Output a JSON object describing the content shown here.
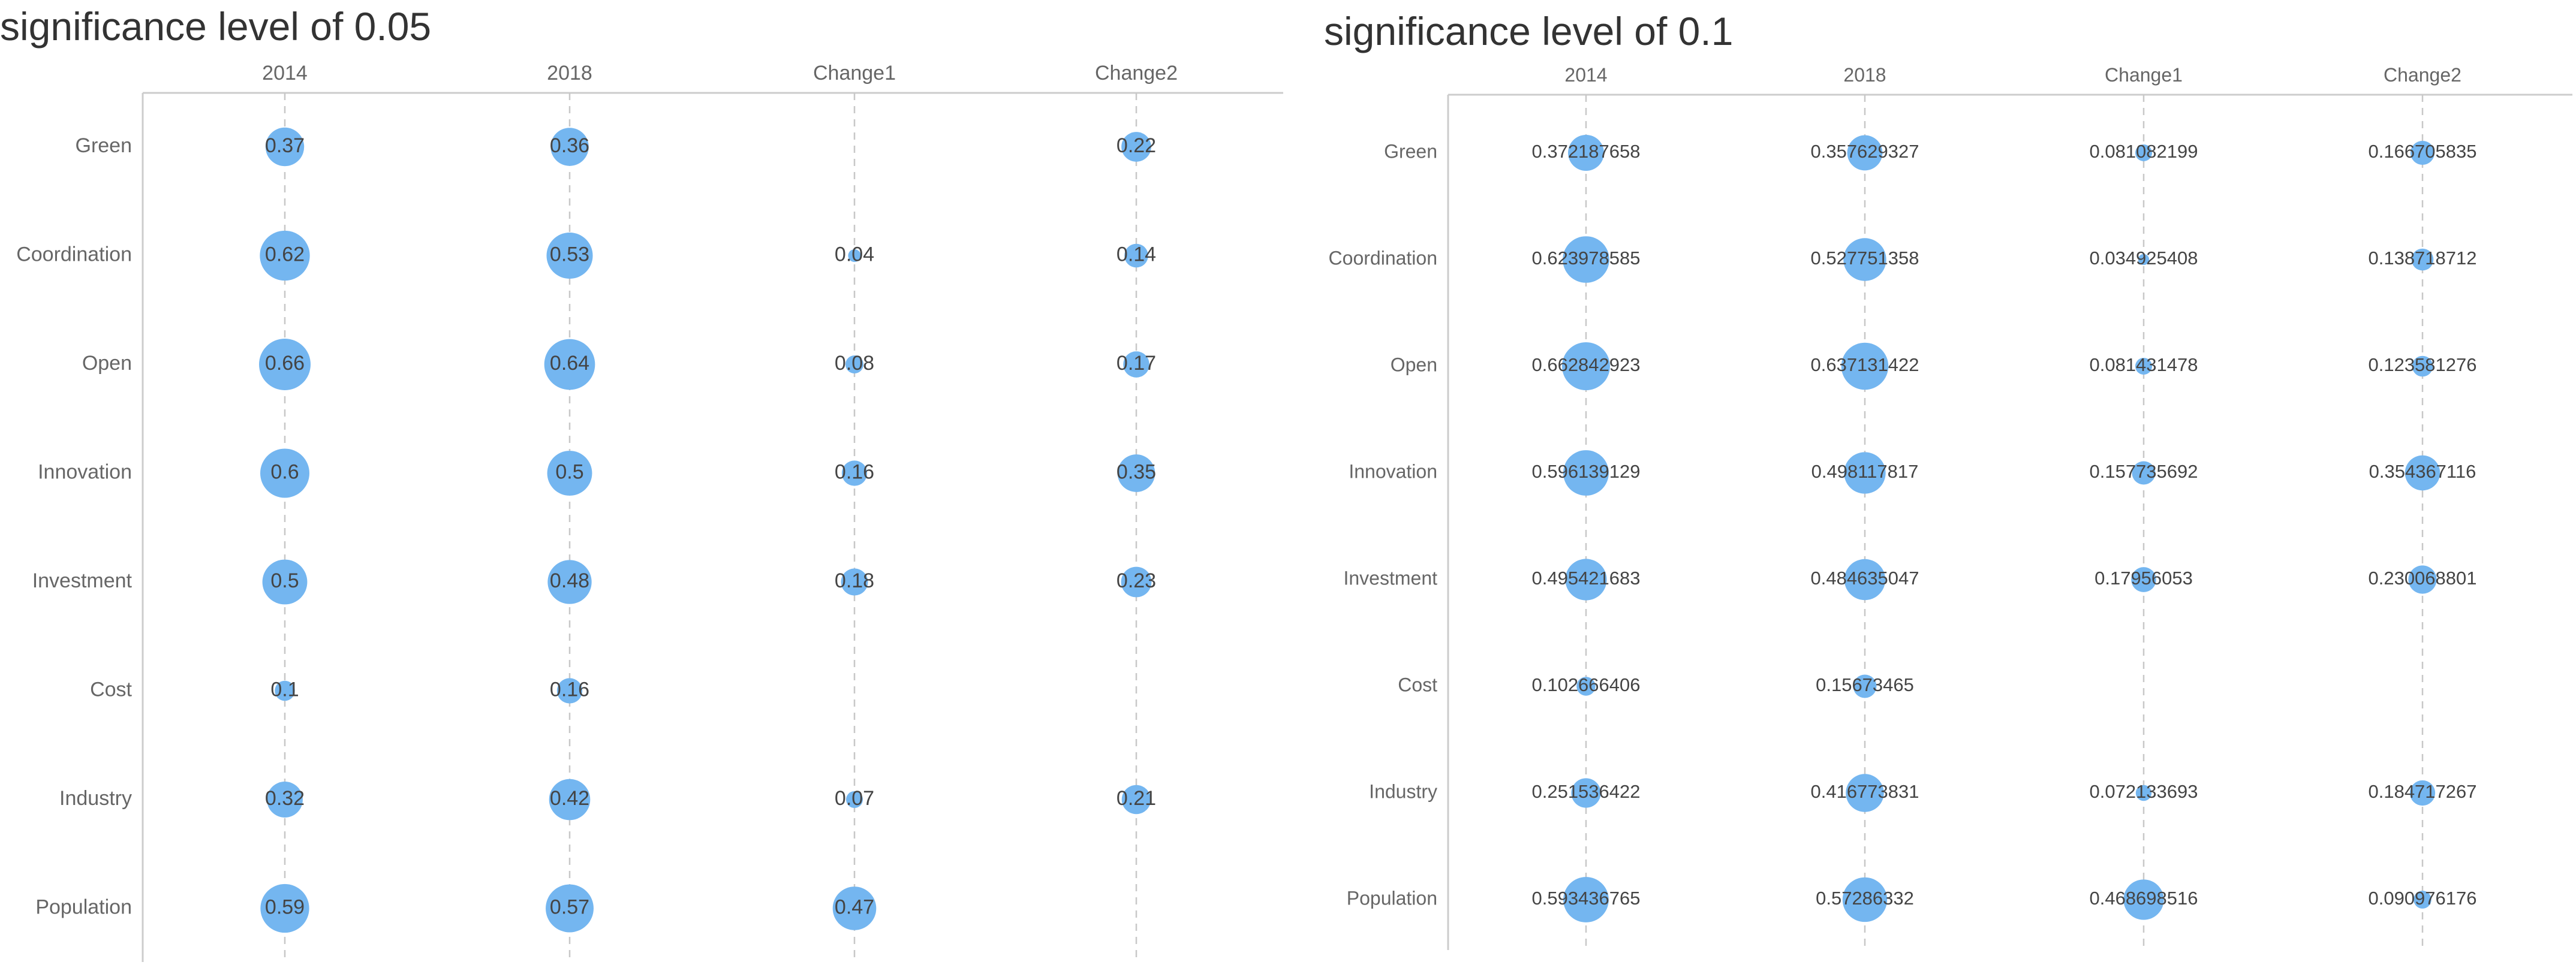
{
  "chart_data": [
    {
      "type": "scatter",
      "title": "significance level of 0.05",
      "columns": [
        "2014",
        "2018",
        "Change1",
        "Change2"
      ],
      "rows": [
        "Green",
        "Coordination",
        "Open",
        "Innovation",
        "Investment",
        "Cost",
        "Industry",
        "Population"
      ],
      "cells": [
        {
          "row": "Green",
          "col": "2014",
          "value": 0.37,
          "label": "0.37"
        },
        {
          "row": "Green",
          "col": "2018",
          "value": 0.36,
          "label": "0.36"
        },
        {
          "row": "Green",
          "col": "Change2",
          "value": 0.22,
          "label": "0.22"
        },
        {
          "row": "Coordination",
          "col": "2014",
          "value": 0.62,
          "label": "0.62"
        },
        {
          "row": "Coordination",
          "col": "2018",
          "value": 0.53,
          "label": "0.53"
        },
        {
          "row": "Coordination",
          "col": "Change1",
          "value": 0.04,
          "label": "0.04"
        },
        {
          "row": "Coordination",
          "col": "Change2",
          "value": 0.14,
          "label": "0.14"
        },
        {
          "row": "Open",
          "col": "2014",
          "value": 0.66,
          "label": "0.66"
        },
        {
          "row": "Open",
          "col": "2018",
          "value": 0.64,
          "label": "0.64"
        },
        {
          "row": "Open",
          "col": "Change1",
          "value": 0.08,
          "label": "0.08"
        },
        {
          "row": "Open",
          "col": "Change2",
          "value": 0.17,
          "label": "0.17"
        },
        {
          "row": "Innovation",
          "col": "2014",
          "value": 0.6,
          "label": "0.6"
        },
        {
          "row": "Innovation",
          "col": "2018",
          "value": 0.5,
          "label": "0.5"
        },
        {
          "row": "Innovation",
          "col": "Change1",
          "value": 0.16,
          "label": "0.16"
        },
        {
          "row": "Innovation",
          "col": "Change2",
          "value": 0.35,
          "label": "0.35"
        },
        {
          "row": "Investment",
          "col": "2014",
          "value": 0.5,
          "label": "0.5"
        },
        {
          "row": "Investment",
          "col": "2018",
          "value": 0.48,
          "label": "0.48"
        },
        {
          "row": "Investment",
          "col": "Change1",
          "value": 0.18,
          "label": "0.18"
        },
        {
          "row": "Investment",
          "col": "Change2",
          "value": 0.23,
          "label": "0.23"
        },
        {
          "row": "Cost",
          "col": "2014",
          "value": 0.1,
          "label": "0.1"
        },
        {
          "row": "Cost",
          "col": "2018",
          "value": 0.16,
          "label": "0.16"
        },
        {
          "row": "Industry",
          "col": "2014",
          "value": 0.32,
          "label": "0.32"
        },
        {
          "row": "Industry",
          "col": "2018",
          "value": 0.42,
          "label": "0.42"
        },
        {
          "row": "Industry",
          "col": "Change1",
          "value": 0.07,
          "label": "0.07"
        },
        {
          "row": "Industry",
          "col": "Change2",
          "value": 0.21,
          "label": "0.21"
        },
        {
          "row": "Population",
          "col": "2014",
          "value": 0.59,
          "label": "0.59"
        },
        {
          "row": "Population",
          "col": "2018",
          "value": 0.57,
          "label": "0.57"
        },
        {
          "row": "Population",
          "col": "Change1",
          "value": 0.47,
          "label": "0.47"
        }
      ]
    },
    {
      "type": "scatter",
      "title": "significance level of 0.1",
      "columns": [
        "2014",
        "2018",
        "Change1",
        "Change2"
      ],
      "rows": [
        "Green",
        "Coordination",
        "Open",
        "Innovation",
        "Investment",
        "Cost",
        "Industry",
        "Population"
      ],
      "cells": [
        {
          "row": "Green",
          "col": "2014",
          "value": 0.372187658,
          "label": "0.372187658"
        },
        {
          "row": "Green",
          "col": "2018",
          "value": 0.357629327,
          "label": "0.357629327"
        },
        {
          "row": "Green",
          "col": "Change1",
          "value": 0.081082199,
          "label": "0.081082199"
        },
        {
          "row": "Green",
          "col": "Change2",
          "value": 0.166705835,
          "label": "0.166705835"
        },
        {
          "row": "Coordination",
          "col": "2014",
          "value": 0.623978585,
          "label": "0.623978585"
        },
        {
          "row": "Coordination",
          "col": "2018",
          "value": 0.527751358,
          "label": "0.527751358"
        },
        {
          "row": "Coordination",
          "col": "Change1",
          "value": 0.034925408,
          "label": "0.034925408"
        },
        {
          "row": "Coordination",
          "col": "Change2",
          "value": 0.138718712,
          "label": "0.138718712"
        },
        {
          "row": "Open",
          "col": "2014",
          "value": 0.662842923,
          "label": "0.662842923"
        },
        {
          "row": "Open",
          "col": "2018",
          "value": 0.637131422,
          "label": "0.637131422"
        },
        {
          "row": "Open",
          "col": "Change1",
          "value": 0.081431478,
          "label": "0.081431478"
        },
        {
          "row": "Open",
          "col": "Change2",
          "value": 0.123581276,
          "label": "0.123581276"
        },
        {
          "row": "Innovation",
          "col": "2014",
          "value": 0.596139129,
          "label": "0.596139129"
        },
        {
          "row": "Innovation",
          "col": "2018",
          "value": 0.498117817,
          "label": "0.498117817"
        },
        {
          "row": "Innovation",
          "col": "Change1",
          "value": 0.157735692,
          "label": "0.157735692"
        },
        {
          "row": "Innovation",
          "col": "Change2",
          "value": 0.354367116,
          "label": "0.354367116"
        },
        {
          "row": "Investment",
          "col": "2014",
          "value": 0.495421683,
          "label": "0.495421683"
        },
        {
          "row": "Investment",
          "col": "2018",
          "value": 0.484635047,
          "label": "0.484635047"
        },
        {
          "row": "Investment",
          "col": "Change1",
          "value": 0.17956053,
          "label": "0.17956053"
        },
        {
          "row": "Investment",
          "col": "Change2",
          "value": 0.230068801,
          "label": "0.230068801"
        },
        {
          "row": "Cost",
          "col": "2014",
          "value": 0.102666406,
          "label": "0.102666406"
        },
        {
          "row": "Cost",
          "col": "2018",
          "value": 0.15673465,
          "label": "0.15673465"
        },
        {
          "row": "Industry",
          "col": "2014",
          "value": 0.251536422,
          "label": "0.251536422"
        },
        {
          "row": "Industry",
          "col": "2018",
          "value": 0.416773831,
          "label": "0.416773831"
        },
        {
          "row": "Industry",
          "col": "Change1",
          "value": 0.072133693,
          "label": "0.072133693"
        },
        {
          "row": "Industry",
          "col": "Change2",
          "value": 0.184717267,
          "label": "0.184717267"
        },
        {
          "row": "Population",
          "col": "2014",
          "value": 0.593436765,
          "label": "0.593436765"
        },
        {
          "row": "Population",
          "col": "2018",
          "value": 0.57286332,
          "label": "0.57286332"
        },
        {
          "row": "Population",
          "col": "Change1",
          "value": 0.468698516,
          "label": "0.468698516"
        },
        {
          "row": "Population",
          "col": "Change2",
          "value": 0.090976176,
          "label": "0.090976176"
        }
      ]
    }
  ],
  "colors": {
    "bubble": "#74b6f0",
    "axis": "#cccccc",
    "gridline": "#c8c8c8",
    "text": "#666666"
  }
}
